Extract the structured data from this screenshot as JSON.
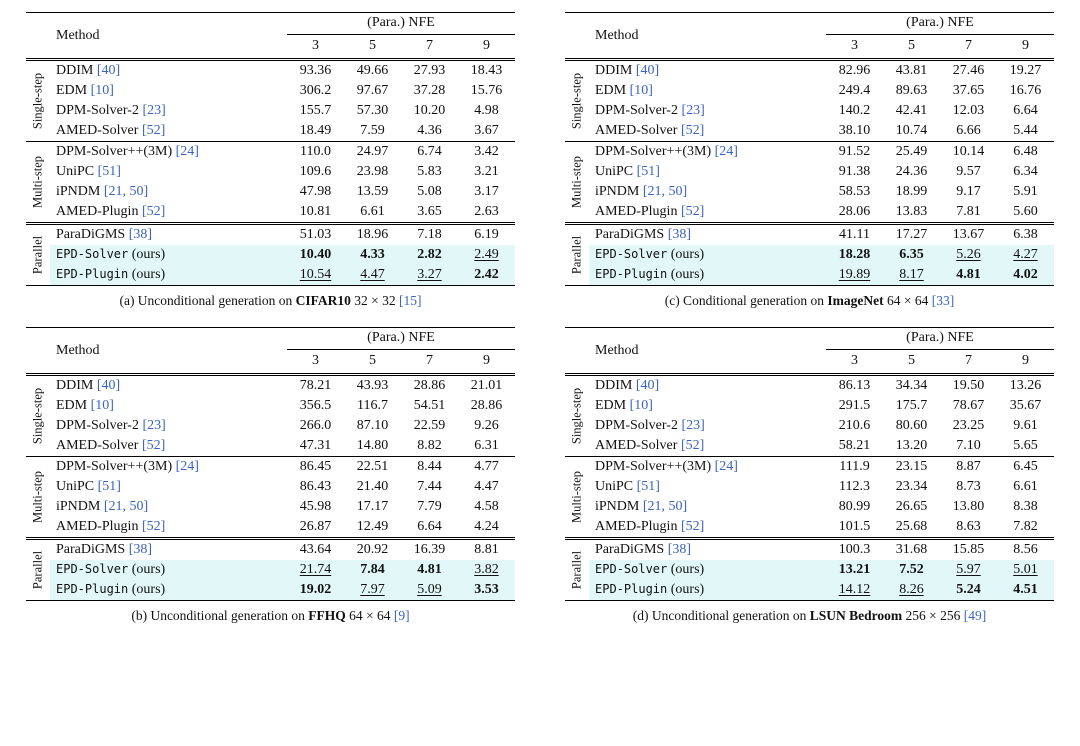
{
  "colors": {
    "citation": "#3b63c0",
    "highlight": "#e2f7f7"
  },
  "header": {
    "method": "Method",
    "nfe": "(Para.) NFE",
    "nfe_cols": [
      "3",
      "5",
      "7",
      "9"
    ]
  },
  "tables": [
    {
      "key": "a",
      "column": "left",
      "caption": {
        "lead": "(a) Unconditional generation on",
        "dataset": "CIFAR10",
        "size": "32 × 32",
        "cite": "15"
      },
      "groups": [
        {
          "label": "Single-step",
          "rows": [
            {
              "name": "DDIM",
              "cite": "40",
              "values": [
                "93.36",
                "49.66",
                "27.93",
                "18.43"
              ]
            },
            {
              "name": "EDM",
              "cite": "10",
              "values": [
                "306.2",
                "97.67",
                "37.28",
                "15.76"
              ]
            },
            {
              "name": "DPM-Solver-2",
              "cite": "23",
              "values": [
                "155.7",
                "57.30",
                "10.20",
                "4.98"
              ]
            },
            {
              "name": "AMED-Solver",
              "cite": "52",
              "values": [
                "18.49",
                "7.59",
                "4.36",
                "3.67"
              ]
            }
          ]
        },
        {
          "label": "Multi-step",
          "rows": [
            {
              "name": "DPM-Solver++(3M)",
              "cite": "24",
              "values": [
                "110.0",
                "24.97",
                "6.74",
                "3.42"
              ]
            },
            {
              "name": "UniPC",
              "cite": "51",
              "values": [
                "109.6",
                "23.98",
                "5.83",
                "3.21"
              ]
            },
            {
              "name": "iPNDM",
              "cite": "21, 50",
              "values": [
                "47.98",
                "13.59",
                "5.08",
                "3.17"
              ]
            },
            {
              "name": "AMED-Plugin",
              "cite": "52",
              "values": [
                "10.81",
                "6.61",
                "3.65",
                "2.63"
              ]
            }
          ]
        },
        {
          "label": "Parallel",
          "rows": [
            {
              "name": "ParaDiGMS",
              "cite": "38",
              "values": [
                "51.03",
                "18.96",
                "7.18",
                "6.19"
              ]
            },
            {
              "name": "EPD-Solver",
              "suffix": "(ours)",
              "mono": true,
              "hl": true,
              "values": [
                "10.40",
                "4.33",
                "2.82",
                "2.49"
              ],
              "styles": [
                "b",
                "b",
                "b",
                "u"
              ]
            },
            {
              "name": "EPD-Plugin",
              "suffix": "(ours)",
              "mono": true,
              "hl": true,
              "values": [
                "10.54",
                "4.47",
                "3.27",
                "2.42"
              ],
              "styles": [
                "u",
                "u",
                "u",
                "b"
              ]
            }
          ]
        }
      ]
    },
    {
      "key": "b",
      "column": "left",
      "caption": {
        "lead": "(b) Unconditional generation on",
        "dataset": "FFHQ",
        "size": "64 × 64",
        "cite": "9"
      },
      "groups": [
        {
          "label": "Single-step",
          "rows": [
            {
              "name": "DDIM",
              "cite": "40",
              "values": [
                "78.21",
                "43.93",
                "28.86",
                "21.01"
              ]
            },
            {
              "name": "EDM",
              "cite": "10",
              "values": [
                "356.5",
                "116.7",
                "54.51",
                "28.86"
              ]
            },
            {
              "name": "DPM-Solver-2",
              "cite": "23",
              "values": [
                "266.0",
                "87.10",
                "22.59",
                "9.26"
              ]
            },
            {
              "name": "AMED-Solver",
              "cite": "52",
              "values": [
                "47.31",
                "14.80",
                "8.82",
                "6.31"
              ]
            }
          ]
        },
        {
          "label": "Multi-step",
          "rows": [
            {
              "name": "DPM-Solver++(3M)",
              "cite": "24",
              "values": [
                "86.45",
                "22.51",
                "8.44",
                "4.77"
              ]
            },
            {
              "name": "UniPC",
              "cite": "51",
              "values": [
                "86.43",
                "21.40",
                "7.44",
                "4.47"
              ]
            },
            {
              "name": "iPNDM",
              "cite": "21, 50",
              "values": [
                "45.98",
                "17.17",
                "7.79",
                "4.58"
              ]
            },
            {
              "name": "AMED-Plugin",
              "cite": "52",
              "values": [
                "26.87",
                "12.49",
                "6.64",
                "4.24"
              ]
            }
          ]
        },
        {
          "label": "Parallel",
          "rows": [
            {
              "name": "ParaDiGMS",
              "cite": "38",
              "values": [
                "43.64",
                "20.92",
                "16.39",
                "8.81"
              ]
            },
            {
              "name": "EPD-Solver",
              "suffix": "(ours)",
              "mono": true,
              "hl": true,
              "values": [
                "21.74",
                "7.84",
                "4.81",
                "3.82"
              ],
              "styles": [
                "u",
                "b",
                "b",
                "u"
              ]
            },
            {
              "name": "EPD-Plugin",
              "suffix": "(ours)",
              "mono": true,
              "hl": true,
              "values": [
                "19.02",
                "7.97",
                "5.09",
                "3.53"
              ],
              "styles": [
                "b",
                "u",
                "u",
                "b"
              ]
            }
          ]
        }
      ]
    },
    {
      "key": "c",
      "column": "right",
      "caption": {
        "lead": "(c) Conditional generation on",
        "dataset": "ImageNet",
        "size": "64 × 64",
        "cite": "33"
      },
      "groups": [
        {
          "label": "Single-step",
          "rows": [
            {
              "name": "DDIM",
              "cite": "40",
              "values": [
                "82.96",
                "43.81",
                "27.46",
                "19.27"
              ]
            },
            {
              "name": "EDM",
              "cite": "10",
              "values": [
                "249.4",
                "89.63",
                "37.65",
                "16.76"
              ]
            },
            {
              "name": "DPM-Solver-2",
              "cite": "23",
              "values": [
                "140.2",
                "42.41",
                "12.03",
                "6.64"
              ]
            },
            {
              "name": "AMED-Solver",
              "cite": "52",
              "values": [
                "38.10",
                "10.74",
                "6.66",
                "5.44"
              ]
            }
          ]
        },
        {
          "label": "Multi-step",
          "rows": [
            {
              "name": "DPM-Solver++(3M)",
              "cite": "24",
              "values": [
                "91.52",
                "25.49",
                "10.14",
                "6.48"
              ]
            },
            {
              "name": "UniPC",
              "cite": "51",
              "values": [
                "91.38",
                "24.36",
                "9.57",
                "6.34"
              ]
            },
            {
              "name": "iPNDM",
              "cite": "21, 50",
              "values": [
                "58.53",
                "18.99",
                "9.17",
                "5.91"
              ]
            },
            {
              "name": "AMED-Plugin",
              "cite": "52",
              "values": [
                "28.06",
                "13.83",
                "7.81",
                "5.60"
              ]
            }
          ]
        },
        {
          "label": "Parallel",
          "rows": [
            {
              "name": "ParaDiGMS",
              "cite": "38",
              "values": [
                "41.11",
                "17.27",
                "13.67",
                "6.38"
              ]
            },
            {
              "name": "EPD-Solver",
              "suffix": "(ours)",
              "mono": true,
              "hl": true,
              "values": [
                "18.28",
                "6.35",
                "5.26",
                "4.27"
              ],
              "styles": [
                "b",
                "b",
                "u",
                "u"
              ]
            },
            {
              "name": "EPD-Plugin",
              "suffix": "(ours)",
              "mono": true,
              "hl": true,
              "values": [
                "19.89",
                "8.17",
                "4.81",
                "4.02"
              ],
              "styles": [
                "u",
                "u",
                "b",
                "b"
              ]
            }
          ]
        }
      ]
    },
    {
      "key": "d",
      "column": "right",
      "caption": {
        "lead": "(d) Unconditional generation on",
        "dataset": "LSUN Bedroom",
        "size": "256 × 256",
        "cite": "49"
      },
      "groups": [
        {
          "label": "Single-step",
          "rows": [
            {
              "name": "DDIM",
              "cite": "40",
              "values": [
                "86.13",
                "34.34",
                "19.50",
                "13.26"
              ]
            },
            {
              "name": "EDM",
              "cite": "10",
              "values": [
                "291.5",
                "175.7",
                "78.67",
                "35.67"
              ]
            },
            {
              "name": "DPM-Solver-2",
              "cite": "23",
              "values": [
                "210.6",
                "80.60",
                "23.25",
                "9.61"
              ]
            },
            {
              "name": "AMED-Solver",
              "cite": "52",
              "values": [
                "58.21",
                "13.20",
                "7.10",
                "5.65"
              ]
            }
          ]
        },
        {
          "label": "Multi-step",
          "rows": [
            {
              "name": "DPM-Solver++(3M)",
              "cite": "24",
              "values": [
                "111.9",
                "23.15",
                "8.87",
                "6.45"
              ]
            },
            {
              "name": "UniPC",
              "cite": "51",
              "values": [
                "112.3",
                "23.34",
                "8.73",
                "6.61"
              ]
            },
            {
              "name": "iPNDM",
              "cite": "21, 50",
              "values": [
                "80.99",
                "26.65",
                "13.80",
                "8.38"
              ]
            },
            {
              "name": "AMED-Plugin",
              "cite": "52",
              "values": [
                "101.5",
                "25.68",
                "8.63",
                "7.82"
              ]
            }
          ]
        },
        {
          "label": "Parallel",
          "rows": [
            {
              "name": "ParaDiGMS",
              "cite": "38",
              "values": [
                "100.3",
                "31.68",
                "15.85",
                "8.56"
              ]
            },
            {
              "name": "EPD-Solver",
              "suffix": "(ours)",
              "mono": true,
              "hl": true,
              "values": [
                "13.21",
                "7.52",
                "5.97",
                "5.01"
              ],
              "styles": [
                "b",
                "b",
                "u",
                "u"
              ]
            },
            {
              "name": "EPD-Plugin",
              "suffix": "(ours)",
              "mono": true,
              "hl": true,
              "values": [
                "14.12",
                "8.26",
                "5.24",
                "4.51"
              ],
              "styles": [
                "u",
                "u",
                "b",
                "b"
              ]
            }
          ]
        }
      ]
    }
  ]
}
